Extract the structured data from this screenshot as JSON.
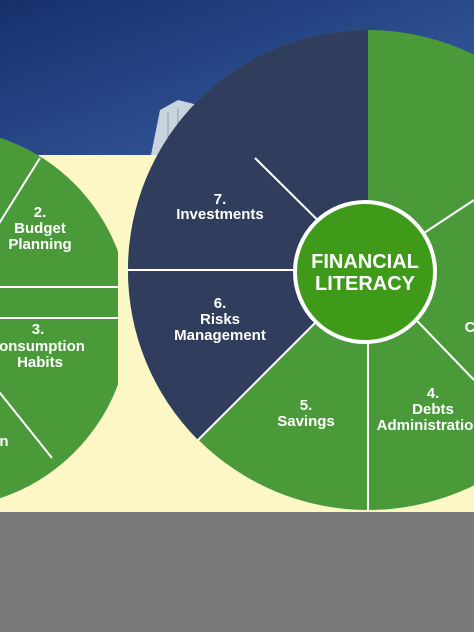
{
  "center": {
    "line1": "FINANCIAL",
    "line2": "LITERACY"
  },
  "segments": [
    {
      "number": "7.",
      "line1": "Investments",
      "line2": ""
    },
    {
      "number": "6.",
      "line1": "Risks",
      "line2": "Management"
    },
    {
      "number": "5.",
      "line1": "Savings",
      "line2": ""
    },
    {
      "number": "4.",
      "line1": "Debts",
      "line2": "Administratio"
    },
    {
      "number": "3.",
      "line1": "onsumption",
      "line2": "Habits"
    },
    {
      "number": "2.",
      "line1": "Budget",
      "line2": "Planning"
    },
    {
      "number": "",
      "line1": "n",
      "line2": ""
    },
    {
      "number": "",
      "line1": "C",
      "line2": ""
    }
  ],
  "colors": {
    "green": "#4a9a3a",
    "navy": "#303d5c",
    "center": "#3f9a1a",
    "sky": "#1f3a78",
    "cream": "#fdf7c6",
    "gray": "#7a7a7a"
  }
}
